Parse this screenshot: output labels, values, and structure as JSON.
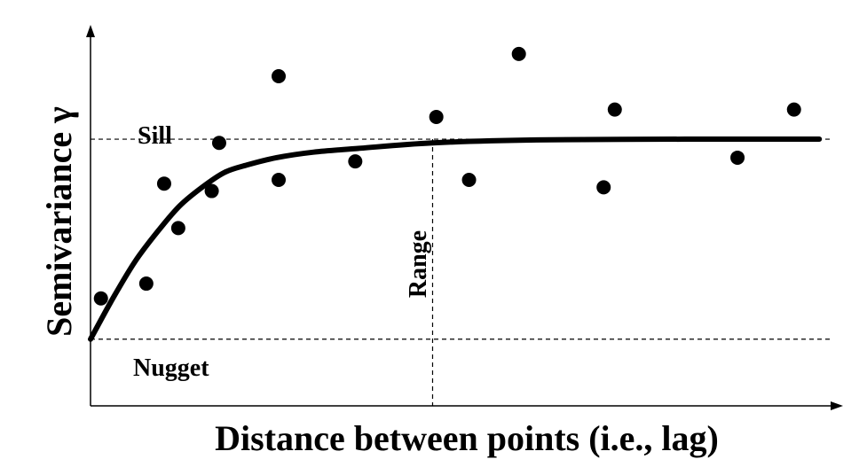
{
  "chart_data": {
    "type": "scatter",
    "title": "",
    "xlabel": "Distance between points (i.e., lag)",
    "ylabel": "Semivariance γ",
    "xlim": [
      0,
      100
    ],
    "ylim": [
      0,
      100
    ],
    "grid": false,
    "annotations": {
      "sill": "Sill",
      "nugget": "Nugget",
      "range": "Range"
    },
    "reference": {
      "sill_y": 72,
      "nugget_y": 18,
      "range_x": 46
    },
    "points": [
      {
        "x": 1.4,
        "y": 29
      },
      {
        "x": 7.5,
        "y": 33
      },
      {
        "x": 9.9,
        "y": 60
      },
      {
        "x": 11.8,
        "y": 48
      },
      {
        "x": 16.3,
        "y": 58
      },
      {
        "x": 17.3,
        "y": 71
      },
      {
        "x": 25.3,
        "y": 89
      },
      {
        "x": 25.3,
        "y": 61
      },
      {
        "x": 35.6,
        "y": 66
      },
      {
        "x": 46.5,
        "y": 78
      },
      {
        "x": 50.9,
        "y": 61
      },
      {
        "x": 57.6,
        "y": 95
      },
      {
        "x": 69.0,
        "y": 59
      },
      {
        "x": 70.5,
        "y": 80
      },
      {
        "x": 87.0,
        "y": 67
      },
      {
        "x": 94.6,
        "y": 80
      }
    ],
    "model_curve": [
      {
        "x": 0,
        "y": 18
      },
      {
        "x": 3,
        "y": 29
      },
      {
        "x": 6,
        "y": 39
      },
      {
        "x": 9,
        "y": 47
      },
      {
        "x": 12,
        "y": 54
      },
      {
        "x": 15,
        "y": 59
      },
      {
        "x": 18,
        "y": 63
      },
      {
        "x": 21,
        "y": 65
      },
      {
        "x": 25,
        "y": 67
      },
      {
        "x": 30,
        "y": 68.5
      },
      {
        "x": 36,
        "y": 69.5
      },
      {
        "x": 46,
        "y": 71
      },
      {
        "x": 60,
        "y": 71.8
      },
      {
        "x": 80,
        "y": 72
      },
      {
        "x": 98,
        "y": 72
      }
    ]
  }
}
